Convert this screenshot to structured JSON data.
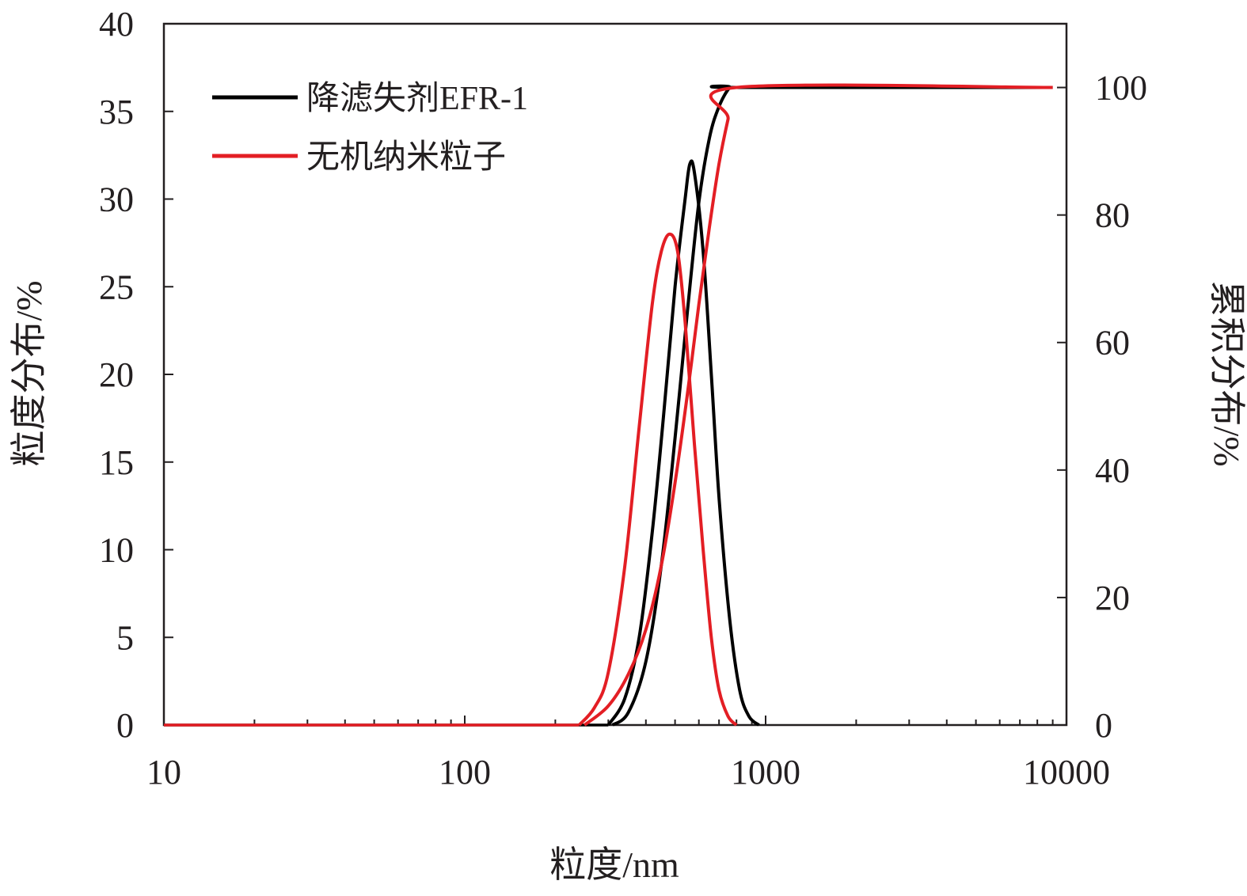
{
  "chart_data": {
    "type": "line",
    "xlabel": "粒度/nm",
    "ylabel_left": "粒度分布/%",
    "ylabel_right": "累积分布/%",
    "x_scale": "log",
    "xlim": [
      10,
      10000
    ],
    "ylim_left": [
      0,
      40
    ],
    "ylim_right": [
      0,
      110
    ],
    "x_ticks": [
      "10",
      "100",
      "1000",
      "10000"
    ],
    "y_ticks_left": [
      "0",
      "5",
      "10",
      "15",
      "20",
      "25",
      "30",
      "35",
      "40"
    ],
    "y_ticks_right": [
      "0",
      "20",
      "40",
      "60",
      "80",
      "100"
    ],
    "grid": false,
    "legend_position": "top-left",
    "series": [
      {
        "name": "降滤失剂EFR-1",
        "color": "#000000",
        "distribution": {
          "axis": "left",
          "x": [
            300,
            340,
            380,
            420,
            460,
            500,
            540,
            560,
            580,
            620,
            660,
            700,
            760,
            820,
            880,
            950
          ],
          "y": [
            0,
            1.5,
            5,
            11,
            18,
            25,
            30,
            32,
            31.5,
            27,
            20,
            13,
            6,
            2,
            0.5,
            0
          ]
        },
        "cumulative": {
          "axis": "right",
          "x": [
            310,
            350,
            400,
            450,
            500,
            550,
            600,
            650,
            700,
            760,
            800,
            9000
          ],
          "y": [
            0,
            2,
            10,
            25,
            45,
            65,
            82,
            92,
            97,
            100,
            100,
            100
          ]
        }
      },
      {
        "name": "无机纳米粒子",
        "color": "#e31e24",
        "distribution": {
          "axis": "left",
          "x": [
            240,
            270,
            300,
            340,
            380,
            420,
            450,
            480,
            510,
            540,
            580,
            620,
            660,
            700,
            750,
            800
          ],
          "y": [
            0,
            1,
            3,
            9,
            17,
            24,
            27,
            28,
            27,
            23,
            16,
            10,
            5,
            2,
            0.5,
            0
          ]
        },
        "cumulative": {
          "axis": "right",
          "x": [
            250,
            300,
            350,
            400,
            450,
            500,
            550,
            600,
            650,
            700,
            750,
            800,
            9000
          ],
          "y": [
            0,
            3,
            8,
            15,
            25,
            38,
            52,
            66,
            78,
            88,
            95,
            100,
            100
          ]
        }
      }
    ]
  }
}
